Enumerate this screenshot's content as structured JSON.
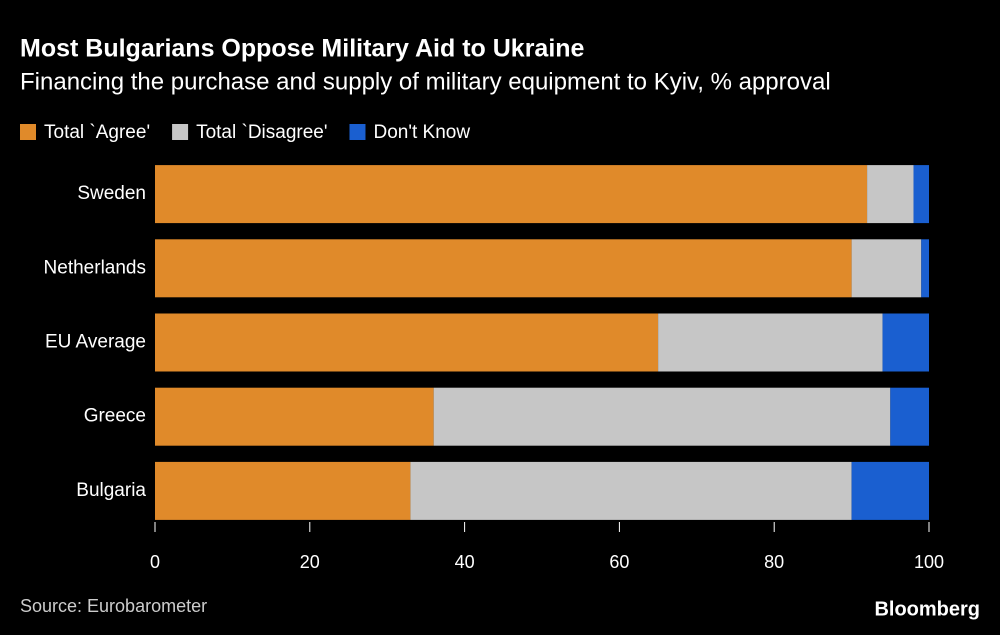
{
  "chart_data": {
    "type": "stacked-bar-horizontal",
    "title": "Most Bulgarians Oppose Military Aid to Ukraine",
    "subtitle": "Financing the purchase and supply of military equipment to Kyiv, % approval",
    "categories": [
      "Sweden",
      "Netherlands",
      "EU Average",
      "Greece",
      "Bulgaria"
    ],
    "series": [
      {
        "name": "Total `Agree'",
        "color": "#e08a2a",
        "values": [
          92,
          90,
          65,
          36,
          33
        ]
      },
      {
        "name": "Total `Disagree'",
        "color": "#c6c6c6",
        "values": [
          6,
          9,
          29,
          59,
          57
        ]
      },
      {
        "name": "Don't Know",
        "color": "#1a5fd0",
        "values": [
          2,
          1,
          6,
          5,
          10
        ]
      }
    ],
    "xlim": [
      0,
      100
    ],
    "xticks": [
      0,
      20,
      40,
      60,
      80,
      100
    ],
    "source": "Source: Eurobarometer",
    "brand": "Bloomberg"
  }
}
